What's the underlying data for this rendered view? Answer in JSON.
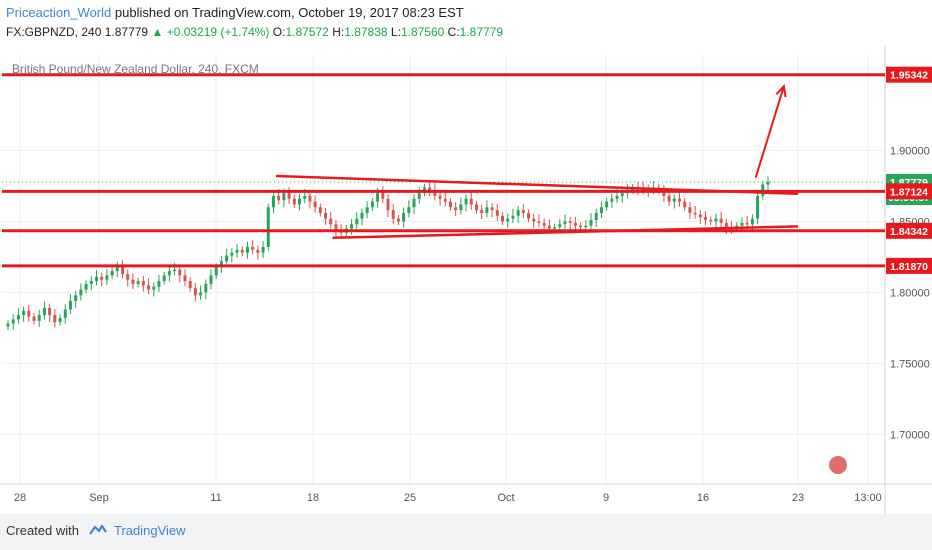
{
  "header": {
    "author": "Priceaction_World",
    "published": "published on TradingView.com, October 19, 2017 08:23 EST",
    "symbol": "FX:GBPNZD, 240",
    "last": "1.87779",
    "change": "+0.03219 (+1.74%)",
    "o_label": "O:",
    "o_value": "1.87572",
    "h_label": "H:",
    "h_value": "1.87838",
    "l_label": "L:",
    "l_value": "1.87560",
    "c_label": "C:",
    "c_value": "1.87779"
  },
  "footer": {
    "created_with": "Created with",
    "brand": "TradingView"
  },
  "colors": {
    "up": "#26a65b",
    "down": "#d9534f",
    "line": "#e8191d",
    "accent": "#3d86d6"
  },
  "chart_data": {
    "type": "candlestick",
    "title": "British Pound/New Zealand Dollar, 240, FXCM",
    "ylim": [
      1.665,
      1.968
    ],
    "y_ticks": [
      "1.90000",
      "1.85000",
      "1.80000",
      "1.75000",
      "1.70000"
    ],
    "x_ticks": [
      "28",
      "Sep",
      "11",
      "18",
      "25",
      "Oct",
      "9",
      "16",
      "23",
      "13:00"
    ],
    "price_labels": [
      {
        "value": 1.95342,
        "text": "1.95342",
        "style": "line"
      },
      {
        "value": 1.87779,
        "text": "1.87779",
        "style": "last"
      },
      {
        "value": 1.8672,
        "text": "03:36:57",
        "style": "timer"
      },
      {
        "value": 1.87124,
        "text": "1.87124",
        "style": "line"
      },
      {
        "value": 1.84342,
        "text": "1.84342",
        "style": "line"
      },
      {
        "value": 1.8187,
        "text": "1.81870",
        "style": "line"
      }
    ],
    "horizontal_lines": [
      1.95342,
      1.87124,
      1.84342,
      1.8187
    ],
    "trend_lines": [
      {
        "from": [
          "Sep 16",
          1.882
        ],
        "to": [
          "Oct 23",
          1.8695
        ]
      },
      {
        "from": [
          "Sep 20",
          1.8385
        ],
        "to": [
          "Oct 23",
          1.8465
        ]
      }
    ],
    "arrow": {
      "from": [
        "Oct 20",
        1.8808
      ],
      "to": [
        "Oct 22",
        1.9453
      ]
    },
    "close_series": [
      1.778,
      1.781,
      1.784,
      1.787,
      1.783,
      1.78,
      1.784,
      1.789,
      1.784,
      1.779,
      1.782,
      1.788,
      1.794,
      1.798,
      1.802,
      1.806,
      1.808,
      1.811,
      1.809,
      1.812,
      1.815,
      1.818,
      1.813,
      1.809,
      1.806,
      1.808,
      1.805,
      1.802,
      1.804,
      1.808,
      1.812,
      1.815,
      1.816,
      1.812,
      1.808,
      1.803,
      1.798,
      1.8,
      1.806,
      1.812,
      1.818,
      1.822,
      1.826,
      1.828,
      1.83,
      1.828,
      1.832,
      1.83,
      1.828,
      1.832,
      1.86,
      1.868,
      1.865,
      1.87,
      1.866,
      1.862,
      1.866,
      1.868,
      1.864,
      1.86,
      1.856,
      1.852,
      1.848,
      1.844,
      1.842,
      1.845,
      1.848,
      1.852,
      1.856,
      1.86,
      1.864,
      1.87,
      1.866,
      1.858,
      1.852,
      1.85,
      1.856,
      1.86,
      1.866,
      1.87,
      1.874,
      1.872,
      1.868,
      1.866,
      1.864,
      1.86,
      1.858,
      1.862,
      1.866,
      1.862,
      1.858,
      1.856,
      1.86,
      1.858,
      1.854,
      1.85,
      1.852,
      1.854,
      1.858,
      1.856,
      1.852,
      1.85,
      1.849,
      1.847,
      1.845,
      1.846,
      1.848,
      1.85,
      1.849,
      1.847,
      1.846,
      1.847,
      1.851,
      1.856,
      1.86,
      1.864,
      1.866,
      1.868,
      1.87,
      1.872,
      1.874,
      1.873,
      1.872,
      1.873,
      1.874,
      1.872,
      1.868,
      1.864,
      1.866,
      1.864,
      1.86,
      1.856,
      1.855,
      1.853,
      1.851,
      1.85,
      1.852,
      1.849,
      1.846,
      1.845,
      1.847,
      1.849,
      1.848,
      1.852,
      1.868,
      1.876,
      1.878
    ]
  }
}
